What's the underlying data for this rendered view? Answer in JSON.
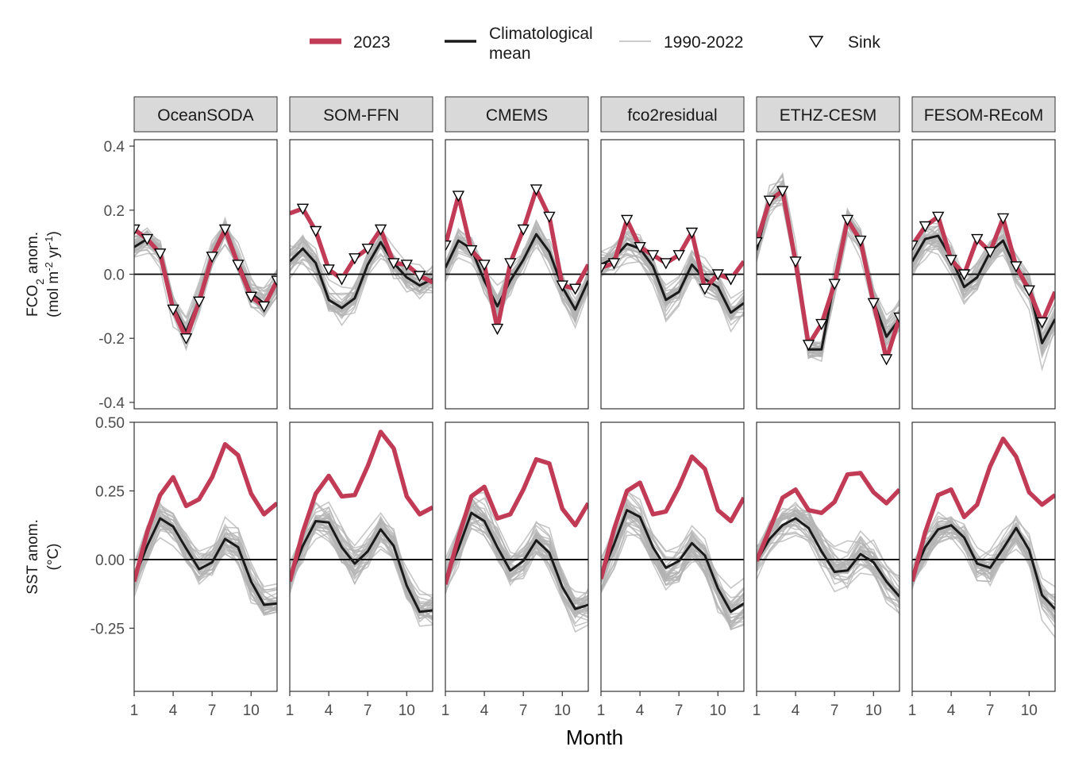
{
  "colors": {
    "y2023": "#c13b57",
    "clim": "#1a1a1a",
    "history": "#b3b3b3",
    "strip_fill": "#d9d9d9",
    "zero_line": "#000000"
  },
  "legend": {
    "items": [
      {
        "key": "y2023",
        "label_lines": [
          "2023"
        ]
      },
      {
        "key": "clim",
        "label_lines": [
          "Climatological",
          "mean"
        ]
      },
      {
        "key": "history",
        "label_lines": [
          "1990-2022"
        ]
      },
      {
        "key": "sink",
        "label_lines": [
          "Sink"
        ]
      }
    ]
  },
  "chart_data": {
    "type": "line",
    "x": [
      1,
      2,
      3,
      4,
      5,
      6,
      7,
      8,
      9,
      10,
      11,
      12
    ],
    "xlabel": "Month",
    "xticks": [
      1,
      4,
      7,
      10
    ],
    "panels": [
      "OceanSODA",
      "SOM-FFN",
      "CMEMS",
      "fco2residual",
      "ETHZ-CESM",
      "FESOM-REcoM"
    ],
    "rows": [
      {
        "id": "fco2",
        "ylabel_lines": [
          "FCO2 anom.",
          "(mol m-2 yr-1)"
        ],
        "ylim": [
          -0.42,
          0.42
        ],
        "yticks": [
          0.4,
          0.2,
          0.0,
          -0.2,
          -0.4
        ],
        "ytick_labels": [
          "0.4",
          "0.2",
          "0.0",
          "-0.2",
          "-0.4"
        ],
        "zero_line": 0,
        "series": [
          {
            "y2023": [
              0.14,
              0.11,
              0.065,
              -0.11,
              -0.2,
              -0.085,
              0.055,
              0.14,
              0.03,
              -0.07,
              -0.1,
              -0.02
            ],
            "clim": [
              0.085,
              0.11,
              0.065,
              -0.1,
              -0.18,
              -0.08,
              0.055,
              0.13,
              0.04,
              -0.06,
              -0.09,
              -0.03
            ],
            "sink": [
              1,
              1,
              1,
              1,
              1,
              1,
              1,
              1,
              1,
              1,
              1,
              1
            ]
          },
          {
            "y2023": [
              0.19,
              0.205,
              0.135,
              0.015,
              -0.015,
              0.05,
              0.08,
              0.14,
              0.035,
              0.03,
              -0.005,
              -0.025
            ],
            "clim": [
              0.04,
              0.08,
              0.035,
              -0.08,
              -0.105,
              -0.075,
              0.03,
              0.1,
              0.035,
              -0.01,
              -0.035,
              -0.015
            ],
            "sink": [
              0,
              1,
              1,
              1,
              1,
              1,
              1,
              1,
              1,
              1,
              1,
              0
            ]
          },
          {
            "y2023": [
              0.09,
              0.245,
              0.075,
              0.03,
              -0.17,
              0.035,
              0.14,
              0.265,
              0.18,
              -0.035,
              -0.045,
              0.03
            ],
            "clim": [
              0.02,
              0.105,
              0.08,
              -0.02,
              -0.1,
              -0.02,
              0.045,
              0.125,
              0.07,
              -0.04,
              -0.11,
              -0.02
            ],
            "sink": [
              1,
              1,
              1,
              1,
              1,
              1,
              1,
              1,
              1,
              1,
              1,
              0
            ]
          },
          {
            "y2023": [
              0.02,
              0.035,
              0.17,
              0.085,
              0.06,
              0.035,
              0.06,
              0.13,
              -0.045,
              0.0,
              -0.015,
              0.04
            ],
            "clim": [
              0.03,
              0.05,
              0.095,
              0.08,
              0.025,
              -0.08,
              -0.055,
              0.03,
              -0.015,
              -0.04,
              -0.12,
              -0.09
            ],
            "sink": [
              1,
              1,
              1,
              1,
              1,
              1,
              1,
              1,
              1,
              1,
              1,
              0
            ]
          },
          {
            "y2023": [
              0.1,
              0.23,
              0.26,
              0.04,
              -0.22,
              -0.155,
              -0.03,
              0.17,
              0.105,
              -0.09,
              -0.265,
              -0.135
            ],
            "clim": [
              0.075,
              0.23,
              0.265,
              0.035,
              -0.235,
              -0.235,
              -0.02,
              0.175,
              0.105,
              -0.085,
              -0.195,
              -0.14
            ],
            "sink": [
              1,
              1,
              1,
              1,
              1,
              1,
              1,
              1,
              1,
              1,
              1,
              1
            ]
          },
          {
            "y2023": [
              0.09,
              0.15,
              0.18,
              0.045,
              0.0,
              0.11,
              0.07,
              0.175,
              0.025,
              -0.05,
              -0.15,
              -0.055
            ],
            "clim": [
              0.04,
              0.11,
              0.12,
              0.05,
              -0.04,
              -0.01,
              0.07,
              0.105,
              0.015,
              -0.04,
              -0.215,
              -0.14
            ],
            "sink": [
              1,
              1,
              1,
              1,
              1,
              1,
              1,
              1,
              1,
              1,
              1,
              0
            ]
          }
        ]
      },
      {
        "id": "sst",
        "ylabel_lines": [
          "SST anom.",
          "(°C)"
        ],
        "ylim": [
          -0.48,
          0.5
        ],
        "yticks": [
          0.5,
          0.25,
          0.0,
          -0.25
        ],
        "ytick_labels": [
          "0.50",
          "0.25",
          "0.00",
          "-0.25"
        ],
        "zero_line": 0,
        "series": [
          {
            "y2023": [
              -0.08,
              0.1,
              0.235,
              0.3,
              0.195,
              0.22,
              0.3,
              0.42,
              0.38,
              0.24,
              0.165,
              0.205
            ],
            "clim": [
              -0.07,
              0.05,
              0.15,
              0.12,
              0.04,
              -0.035,
              -0.01,
              0.075,
              0.045,
              -0.08,
              -0.165,
              -0.16
            ]
          },
          {
            "y2023": [
              -0.08,
              0.1,
              0.24,
              0.305,
              0.23,
              0.235,
              0.34,
              0.465,
              0.405,
              0.23,
              0.165,
              0.19
            ],
            "clim": [
              -0.07,
              0.05,
              0.14,
              0.135,
              0.045,
              -0.015,
              0.03,
              0.11,
              0.05,
              -0.095,
              -0.19,
              -0.185
            ]
          },
          {
            "y2023": [
              -0.09,
              0.08,
              0.23,
              0.265,
              0.15,
              0.165,
              0.255,
              0.365,
              0.35,
              0.185,
              0.125,
              0.205
            ],
            "clim": [
              -0.07,
              0.04,
              0.17,
              0.14,
              0.045,
              -0.04,
              -0.005,
              0.07,
              0.025,
              -0.1,
              -0.18,
              -0.165
            ]
          },
          {
            "y2023": [
              -0.07,
              0.11,
              0.25,
              0.28,
              0.165,
              0.175,
              0.265,
              0.375,
              0.33,
              0.18,
              0.14,
              0.225
            ],
            "clim": [
              -0.06,
              0.055,
              0.18,
              0.155,
              0.045,
              -0.03,
              -0.005,
              0.06,
              0.015,
              -0.105,
              -0.19,
              -0.16
            ]
          },
          {
            "y2023": [
              -0.005,
              0.11,
              0.225,
              0.255,
              0.18,
              0.17,
              0.21,
              0.31,
              0.315,
              0.245,
              0.205,
              0.255
            ],
            "clim": [
              -0.005,
              0.075,
              0.125,
              0.15,
              0.115,
              0.03,
              -0.045,
              -0.04,
              0.02,
              -0.01,
              -0.08,
              -0.135
            ]
          },
          {
            "y2023": [
              -0.08,
              0.1,
              0.235,
              0.255,
              0.155,
              0.2,
              0.34,
              0.44,
              0.375,
              0.245,
              0.2,
              0.235
            ],
            "clim": [
              -0.065,
              0.045,
              0.11,
              0.125,
              0.08,
              -0.015,
              -0.03,
              0.04,
              0.115,
              0.035,
              -0.13,
              -0.18
            ]
          }
        ]
      }
    ]
  }
}
